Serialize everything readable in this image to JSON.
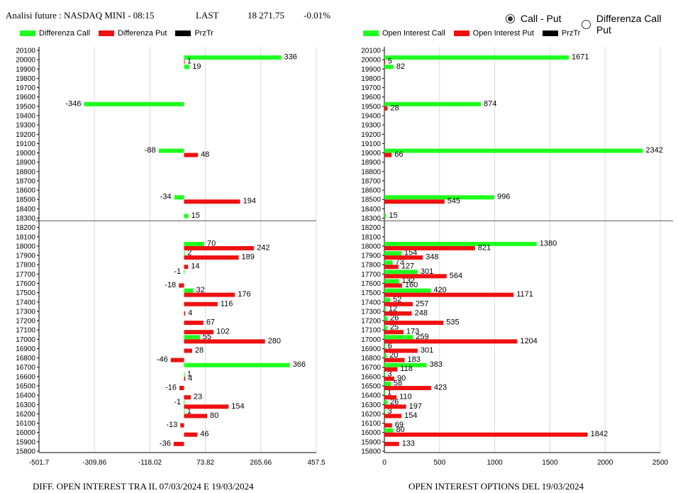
{
  "header": {
    "title": "Analisi future : NASDAQ MINI - 08:15",
    "last_label": "LAST",
    "last_value": "18 271.75",
    "change": "-0.01%"
  },
  "radio_options": [
    {
      "label": "Call - Put",
      "selected": true
    },
    {
      "label": "Differenza Call Put",
      "selected": false
    }
  ],
  "colors": {
    "call": "#1fff1f",
    "put": "#ee1111",
    "prztr": "#000000",
    "grid": "#d9d9d9"
  },
  "chart_data": [
    {
      "type": "bar",
      "orientation": "horizontal",
      "legend": [
        "Differenza Call",
        "Differenza Put",
        "PrzTr"
      ],
      "legend_placement": "top-left",
      "xlabel": "DIFF. OPEN INTEREST TRA IL 07/03/2024 E 19/03/2024",
      "xticks": [
        "-501.7",
        "-309.86",
        "-118.02",
        "73.82",
        "265.66",
        "457.5"
      ],
      "xlim": [
        -501.7,
        457.5
      ],
      "ylim": [
        15800,
        20100
      ],
      "series": [
        {
          "name": "Differenza Call",
          "points": [
            [
              20000,
              336
            ],
            [
              19900,
              19
            ],
            [
              19500,
              -346
            ],
            [
              19000,
              -88
            ],
            [
              18500,
              -34
            ],
            [
              18300,
              15
            ],
            [
              18000,
              70
            ],
            [
              17900,
              2
            ],
            [
              17700,
              -1
            ],
            [
              17500,
              32
            ],
            [
              17000,
              55
            ],
            [
              16700,
              366
            ],
            [
              16600,
              1
            ],
            [
              16300,
              -1
            ],
            [
              16200,
              1
            ]
          ]
        },
        {
          "name": "Differenza Put",
          "points": [
            [
              20000,
              1
            ],
            [
              19000,
              48
            ],
            [
              18500,
              194
            ],
            [
              18000,
              242
            ],
            [
              17900,
              189
            ],
            [
              17800,
              14
            ],
            [
              17600,
              -18
            ],
            [
              17500,
              176
            ],
            [
              17400,
              116
            ],
            [
              17300,
              4
            ],
            [
              17200,
              67
            ],
            [
              17100,
              102
            ],
            [
              17000,
              280
            ],
            [
              16900,
              28
            ],
            [
              16800,
              -46
            ],
            [
              16600,
              4
            ],
            [
              16500,
              -16
            ],
            [
              16400,
              23
            ],
            [
              16300,
              154
            ],
            [
              16200,
              80
            ],
            [
              16100,
              -13
            ],
            [
              16000,
              46
            ],
            [
              15900,
              -36
            ]
          ]
        }
      ],
      "prztr": 18271.75
    },
    {
      "type": "bar",
      "orientation": "horizontal",
      "legend": [
        "Open Interest Call",
        "Open Interest Put",
        "PrzTr"
      ],
      "legend_placement": "top-left",
      "xlabel": "OPEN INTEREST OPTIONS DEL 19/03/2024",
      "xticks": [
        "0",
        "500",
        "1000",
        "1500",
        "2000",
        "2500"
      ],
      "xlim": [
        0,
        2500
      ],
      "ylim": [
        15800,
        20100
      ],
      "series": [
        {
          "name": "Open Interest Call",
          "points": [
            [
              20000,
              1671
            ],
            [
              19900,
              82
            ],
            [
              19500,
              874
            ],
            [
              19000,
              2342
            ],
            [
              18500,
              996
            ],
            [
              18300,
              15
            ],
            [
              18000,
              1380
            ],
            [
              17900,
              154
            ],
            [
              17800,
              73
            ],
            [
              17700,
              301
            ],
            [
              17600,
              132
            ],
            [
              17500,
              420
            ],
            [
              17400,
              52
            ],
            [
              17300,
              12
            ],
            [
              17200,
              26
            ],
            [
              17100,
              25
            ],
            [
              17000,
              259
            ],
            [
              16900,
              6
            ],
            [
              16800,
              20
            ],
            [
              16700,
              383
            ],
            [
              16600,
              3
            ],
            [
              16500,
              58
            ],
            [
              16400,
              1
            ],
            [
              16300,
              26
            ],
            [
              16200,
              3
            ],
            [
              16000,
              80
            ]
          ]
        },
        {
          "name": "Open Interest Put",
          "points": [
            [
              20000,
              5
            ],
            [
              19500,
              28
            ],
            [
              19000,
              66
            ],
            [
              18500,
              545
            ],
            [
              18000,
              821
            ],
            [
              17900,
              348
            ],
            [
              17800,
              127
            ],
            [
              17700,
              564
            ],
            [
              17600,
              160
            ],
            [
              17500,
              1171
            ],
            [
              17400,
              257
            ],
            [
              17300,
              248
            ],
            [
              17200,
              535
            ],
            [
              17100,
              173
            ],
            [
              17000,
              1204
            ],
            [
              16900,
              301
            ],
            [
              16800,
              183
            ],
            [
              16700,
              118
            ],
            [
              16600,
              90
            ],
            [
              16500,
              423
            ],
            [
              16400,
              110
            ],
            [
              16300,
              197
            ],
            [
              16200,
              154
            ],
            [
              16100,
              69
            ],
            [
              16000,
              1842
            ],
            [
              15900,
              133
            ]
          ]
        }
      ],
      "prztr": 18271.75
    }
  ]
}
